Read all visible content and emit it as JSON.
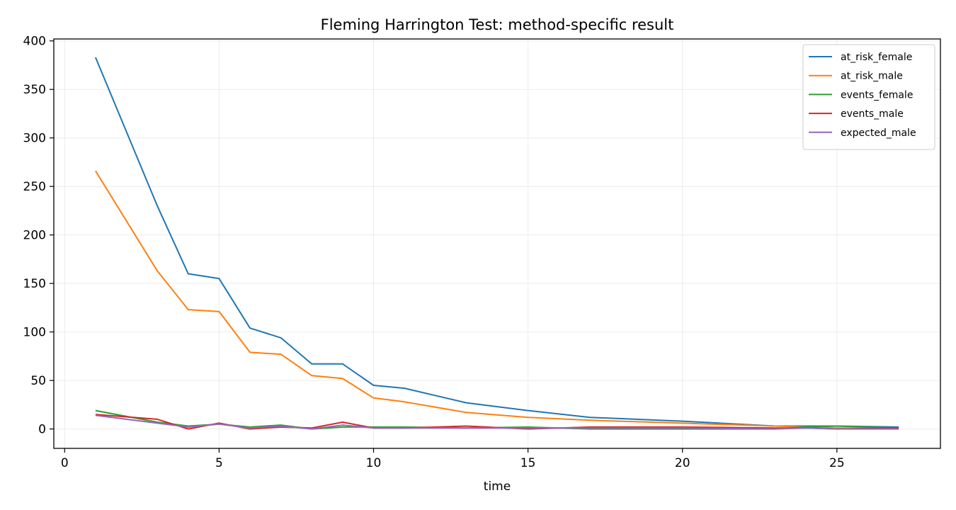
{
  "chart_data": {
    "type": "line",
    "title": "Fleming Harrington Test: method-specific result",
    "xlabel": "time",
    "ylabel": "",
    "xlim": [
      -0.35,
      28.35
    ],
    "ylim": [
      -20,
      402
    ],
    "xticks": [
      0,
      5,
      10,
      15,
      20,
      25
    ],
    "yticks": [
      0,
      50,
      100,
      150,
      200,
      250,
      300,
      350,
      400
    ],
    "grid": true,
    "legend_position": "top-right",
    "x": [
      1,
      3,
      4,
      5,
      6,
      7,
      8,
      9,
      10,
      11,
      13,
      15,
      17,
      20,
      23,
      24,
      25,
      27
    ],
    "series": [
      {
        "name": "at_risk_female",
        "color": "#1f77b4",
        "values": [
          383,
          230,
          160,
          155,
          104,
          94,
          67,
          67,
          45,
          42,
          27,
          19,
          12,
          8,
          3,
          3,
          3,
          2
        ]
      },
      {
        "name": "at_risk_male",
        "color": "#ff7f0e",
        "values": [
          266,
          163,
          123,
          121,
          79,
          77,
          55,
          52,
          32,
          28,
          17,
          12,
          9,
          6,
          3,
          2,
          1,
          1
        ]
      },
      {
        "name": "events_female",
        "color": "#2ca02c",
        "values": [
          19,
          7,
          3,
          5,
          2,
          4,
          0,
          2,
          2,
          2,
          1,
          2,
          0,
          0,
          0,
          2,
          3,
          1
        ]
      },
      {
        "name": "events_male",
        "color": "#d62728",
        "values": [
          15,
          10,
          0,
          6,
          0,
          2,
          1,
          7,
          1,
          1,
          3,
          0,
          2,
          2,
          1,
          1,
          0,
          1
        ]
      },
      {
        "name": "expected_male",
        "color": "#9467bd",
        "values": [
          14,
          6,
          2,
          5,
          1,
          3,
          0,
          4,
          1,
          1,
          1,
          1,
          1,
          1,
          0,
          1,
          0,
          0
        ]
      }
    ]
  }
}
